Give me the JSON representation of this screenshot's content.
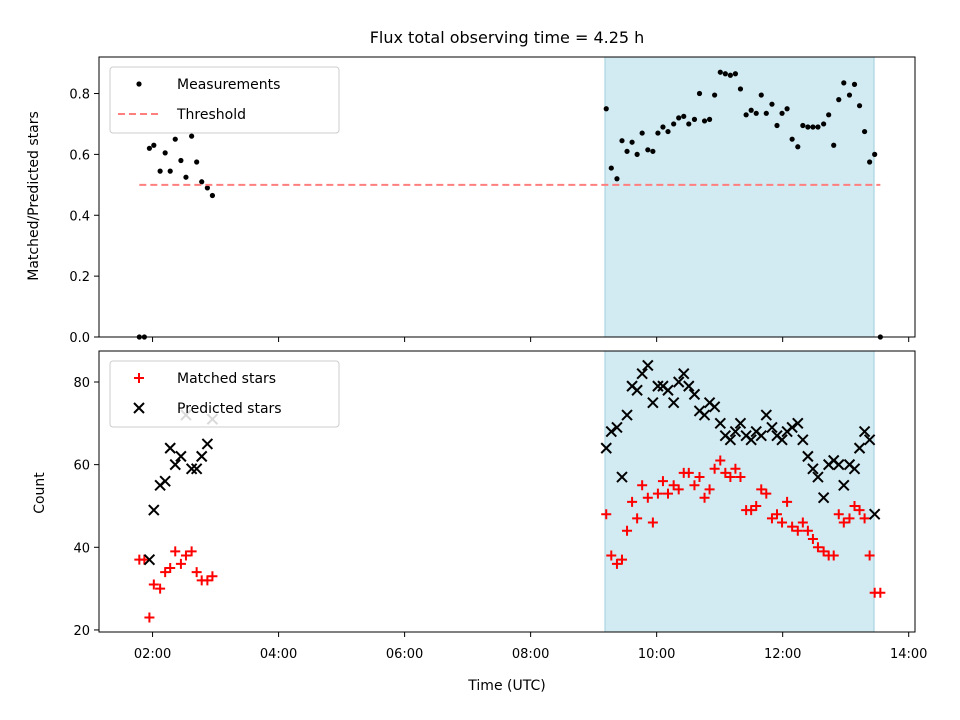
{
  "chart_data": [
    {
      "type": "scatter",
      "title": "Flux total observing time = 4.25 h",
      "xlabel": "",
      "ylabel": "Matched/Predicted stars",
      "ylim": [
        0.0,
        0.92
      ],
      "yticks": [
        0.0,
        0.2,
        0.4,
        0.6,
        0.8
      ],
      "ytick_labels": [
        "0.0",
        "0.2",
        "0.4",
        "0.6",
        "0.8"
      ],
      "xlim": [
        1.15,
        14.1
      ],
      "xticks": [
        2,
        4,
        6,
        8,
        10,
        12,
        14
      ],
      "grid": false,
      "legend_position": "upper left",
      "shaded_span": {
        "x": [
          9.18,
          13.45
        ],
        "color": "#add8e6"
      },
      "series": [
        {
          "name": "Measurements",
          "kind": "dots",
          "color": "#000000",
          "points": [
            [
              1.79,
              0.0
            ],
            [
              1.87,
              0.0
            ],
            [
              1.95,
              0.62
            ],
            [
              2.02,
              0.63
            ],
            [
              2.12,
              0.545
            ],
            [
              2.2,
              0.605
            ],
            [
              2.28,
              0.545
            ],
            [
              2.36,
              0.65
            ],
            [
              2.45,
              0.58
            ],
            [
              2.53,
              0.525
            ],
            [
              2.62,
              0.66
            ],
            [
              2.7,
              0.575
            ],
            [
              2.78,
              0.51
            ],
            [
              2.87,
              0.49
            ],
            [
              2.95,
              0.465
            ],
            [
              9.2,
              0.75
            ],
            [
              9.28,
              0.555
            ],
            [
              9.37,
              0.52
            ],
            [
              9.45,
              0.645
            ],
            [
              9.53,
              0.61
            ],
            [
              9.61,
              0.64
            ],
            [
              9.69,
              0.6
            ],
            [
              9.77,
              0.67
            ],
            [
              9.86,
              0.615
            ],
            [
              9.94,
              0.61
            ],
            [
              10.02,
              0.67
            ],
            [
              10.1,
              0.69
            ],
            [
              10.18,
              0.675
            ],
            [
              10.27,
              0.7
            ],
            [
              10.35,
              0.72
            ],
            [
              10.43,
              0.725
            ],
            [
              10.51,
              0.7
            ],
            [
              10.6,
              0.715
            ],
            [
              10.68,
              0.8
            ],
            [
              10.76,
              0.71
            ],
            [
              10.84,
              0.715
            ],
            [
              10.92,
              0.795
            ],
            [
              11.01,
              0.87
            ],
            [
              11.09,
              0.865
            ],
            [
              11.17,
              0.86
            ],
            [
              11.25,
              0.865
            ],
            [
              11.33,
              0.815
            ],
            [
              11.42,
              0.73
            ],
            [
              11.5,
              0.745
            ],
            [
              11.58,
              0.735
            ],
            [
              11.66,
              0.795
            ],
            [
              11.74,
              0.735
            ],
            [
              11.83,
              0.765
            ],
            [
              11.91,
              0.695
            ],
            [
              11.99,
              0.735
            ],
            [
              12.07,
              0.75
            ],
            [
              12.15,
              0.65
            ],
            [
              12.24,
              0.625
            ],
            [
              12.32,
              0.695
            ],
            [
              12.4,
              0.69
            ],
            [
              12.48,
              0.69
            ],
            [
              12.56,
              0.69
            ],
            [
              12.65,
              0.7
            ],
            [
              12.73,
              0.73
            ],
            [
              12.81,
              0.63
            ],
            [
              12.89,
              0.78
            ],
            [
              12.97,
              0.835
            ],
            [
              13.06,
              0.795
            ],
            [
              13.14,
              0.83
            ],
            [
              13.22,
              0.76
            ],
            [
              13.3,
              0.675
            ],
            [
              13.38,
              0.575
            ],
            [
              13.46,
              0.6
            ],
            [
              13.55,
              0.0
            ]
          ]
        },
        {
          "name": "Threshold",
          "kind": "dashed-line",
          "color": "#ff7f7f",
          "points": [
            [
              1.79,
              0.5
            ],
            [
              13.55,
              0.5
            ]
          ]
        }
      ]
    },
    {
      "type": "scatter",
      "title": "",
      "xlabel": "Time (UTC)",
      "ylabel": "Count",
      "ylim": [
        19.5,
        87.5
      ],
      "yticks": [
        20,
        40,
        60,
        80
      ],
      "ytick_labels": [
        "20",
        "40",
        "60",
        "80"
      ],
      "xlim": [
        1.15,
        14.1
      ],
      "xticks": [
        2,
        4,
        6,
        8,
        10,
        12,
        14
      ],
      "xtick_labels": [
        "02:00",
        "04:00",
        "06:00",
        "08:00",
        "10:00",
        "12:00",
        "14:00"
      ],
      "grid": false,
      "legend_position": "upper left",
      "shaded_span": {
        "x": [
          9.18,
          13.45
        ],
        "color": "#add8e6"
      },
      "series": [
        {
          "name": "Matched stars",
          "kind": "plus",
          "color": "#ff0000",
          "points": [
            [
              1.79,
              37
            ],
            [
              1.87,
              37
            ],
            [
              1.95,
              23
            ],
            [
              2.02,
              31
            ],
            [
              2.12,
              30
            ],
            [
              2.2,
              34
            ],
            [
              2.28,
              35
            ],
            [
              2.36,
              39
            ],
            [
              2.45,
              36
            ],
            [
              2.53,
              38
            ],
            [
              2.62,
              39
            ],
            [
              2.7,
              34
            ],
            [
              2.78,
              32
            ],
            [
              2.87,
              32
            ],
            [
              2.95,
              33
            ],
            [
              9.2,
              48
            ],
            [
              9.28,
              38
            ],
            [
              9.37,
              36
            ],
            [
              9.45,
              37
            ],
            [
              9.53,
              44
            ],
            [
              9.61,
              51
            ],
            [
              9.69,
              47
            ],
            [
              9.77,
              55
            ],
            [
              9.86,
              52
            ],
            [
              9.94,
              46
            ],
            [
              10.02,
              53
            ],
            [
              10.1,
              56
            ],
            [
              10.18,
              53
            ],
            [
              10.27,
              55
            ],
            [
              10.35,
              54
            ],
            [
              10.43,
              58
            ],
            [
              10.51,
              58
            ],
            [
              10.6,
              55
            ],
            [
              10.68,
              57
            ],
            [
              10.76,
              52
            ],
            [
              10.84,
              54
            ],
            [
              10.92,
              59
            ],
            [
              11.01,
              61
            ],
            [
              11.09,
              58
            ],
            [
              11.17,
              57
            ],
            [
              11.25,
              59
            ],
            [
              11.33,
              57
            ],
            [
              11.42,
              49
            ],
            [
              11.5,
              49
            ],
            [
              11.58,
              50
            ],
            [
              11.66,
              54
            ],
            [
              11.74,
              53
            ],
            [
              11.83,
              47
            ],
            [
              11.91,
              48
            ],
            [
              11.99,
              46
            ],
            [
              12.07,
              51
            ],
            [
              12.15,
              45
            ],
            [
              12.24,
              44
            ],
            [
              12.32,
              46
            ],
            [
              12.4,
              44
            ],
            [
              12.48,
              42
            ],
            [
              12.56,
              40
            ],
            [
              12.65,
              39
            ],
            [
              12.73,
              38
            ],
            [
              12.81,
              38
            ],
            [
              12.89,
              48
            ],
            [
              12.97,
              46
            ],
            [
              13.06,
              47
            ],
            [
              13.14,
              50
            ],
            [
              13.22,
              49
            ],
            [
              13.3,
              47
            ],
            [
              13.38,
              38
            ],
            [
              13.46,
              29
            ],
            [
              13.55,
              29
            ]
          ]
        },
        {
          "name": "Predicted stars",
          "kind": "x",
          "color": "#000000",
          "points": [
            [
              1.95,
              37
            ],
            [
              2.02,
              49
            ],
            [
              2.12,
              55
            ],
            [
              2.2,
              56
            ],
            [
              2.28,
              64
            ],
            [
              2.36,
              60
            ],
            [
              2.45,
              62
            ],
            [
              2.53,
              72
            ],
            [
              2.62,
              59
            ],
            [
              2.7,
              59
            ],
            [
              2.78,
              62
            ],
            [
              2.87,
              65
            ],
            [
              2.95,
              71
            ],
            [
              9.2,
              64
            ],
            [
              9.28,
              68
            ],
            [
              9.37,
              69
            ],
            [
              9.45,
              57
            ],
            [
              9.53,
              72
            ],
            [
              9.61,
              79
            ],
            [
              9.69,
              78
            ],
            [
              9.77,
              82
            ],
            [
              9.86,
              84
            ],
            [
              9.94,
              75
            ],
            [
              10.02,
              79
            ],
            [
              10.1,
              79
            ],
            [
              10.18,
              78
            ],
            [
              10.27,
              75
            ],
            [
              10.35,
              80
            ],
            [
              10.43,
              82
            ],
            [
              10.51,
              79
            ],
            [
              10.6,
              77
            ],
            [
              10.68,
              73
            ],
            [
              10.76,
              72
            ],
            [
              10.84,
              75
            ],
            [
              10.92,
              74
            ],
            [
              11.01,
              70
            ],
            [
              11.09,
              67
            ],
            [
              11.17,
              66
            ],
            [
              11.25,
              68
            ],
            [
              11.33,
              70
            ],
            [
              11.42,
              67
            ],
            [
              11.5,
              66
            ],
            [
              11.58,
              68
            ],
            [
              11.66,
              67
            ],
            [
              11.74,
              72
            ],
            [
              11.83,
              69
            ],
            [
              11.91,
              67
            ],
            [
              11.99,
              66
            ],
            [
              12.07,
              68
            ],
            [
              12.15,
              69
            ],
            [
              12.24,
              70
            ],
            [
              12.32,
              66
            ],
            [
              12.4,
              62
            ],
            [
              12.48,
              59
            ],
            [
              12.56,
              57
            ],
            [
              12.65,
              52
            ],
            [
              12.73,
              60
            ],
            [
              12.81,
              61
            ],
            [
              12.89,
              60
            ],
            [
              12.97,
              55
            ],
            [
              13.06,
              60
            ],
            [
              13.14,
              59
            ],
            [
              13.22,
              64
            ],
            [
              13.3,
              68
            ],
            [
              13.38,
              66
            ],
            [
              13.46,
              48
            ]
          ]
        }
      ]
    }
  ]
}
